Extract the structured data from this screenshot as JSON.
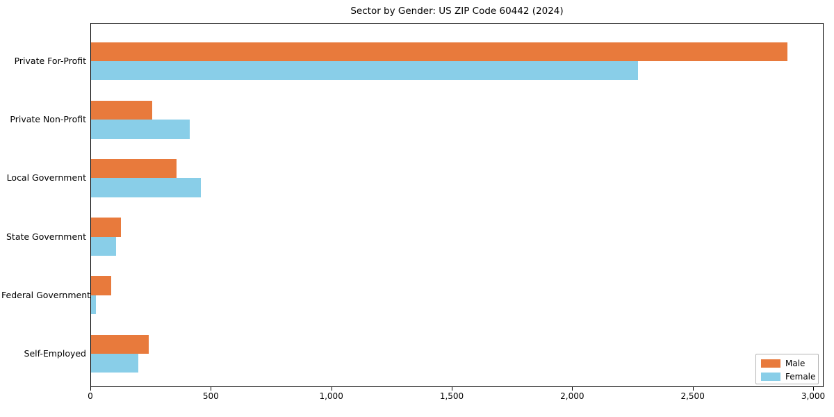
{
  "chart_data": {
    "type": "bar",
    "orientation": "horizontal",
    "title": "Sector by Gender: US ZIP Code 60442 (2024)",
    "categories": [
      "Private For-Profit",
      "Private Non-Profit",
      "Local Government",
      "State Government",
      "Federal Government",
      "Self-Employed"
    ],
    "series": [
      {
        "name": "Male",
        "color": "#e87a3c",
        "values": [
          2890,
          255,
          355,
          125,
          85,
          240
        ]
      },
      {
        "name": "Female",
        "color": "#89cee8",
        "values": [
          2270,
          410,
          455,
          105,
          20,
          195
        ]
      }
    ],
    "xlabel": "",
    "ylabel": "",
    "xlim": [
      0,
      3040
    ],
    "xticks": [
      {
        "value": 0,
        "label": "0"
      },
      {
        "value": 500,
        "label": "500"
      },
      {
        "value": 1000,
        "label": "1,000"
      },
      {
        "value": 1500,
        "label": "1,500"
      },
      {
        "value": 2000,
        "label": "2,000"
      },
      {
        "value": 2500,
        "label": "2,500"
      },
      {
        "value": 3000,
        "label": "3,000"
      }
    ],
    "grid": false,
    "legend_position": "lower right",
    "background_color": "#ffffff",
    "border_color": "#000000"
  }
}
